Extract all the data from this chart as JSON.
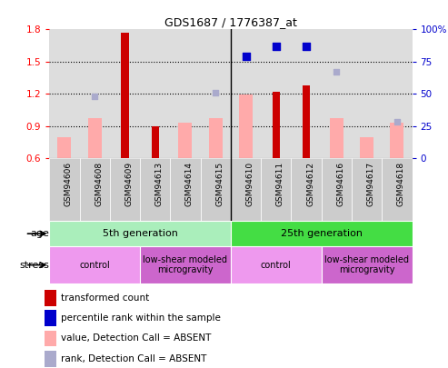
{
  "title": "GDS1687 / 1776387_at",
  "samples": [
    "GSM94606",
    "GSM94608",
    "GSM94609",
    "GSM94613",
    "GSM94614",
    "GSM94615",
    "GSM94610",
    "GSM94611",
    "GSM94612",
    "GSM94616",
    "GSM94617",
    "GSM94618"
  ],
  "transformed_count": [
    null,
    null,
    1.77,
    0.9,
    null,
    null,
    null,
    1.22,
    1.28,
    null,
    null,
    null
  ],
  "transformed_count_absent": [
    0.8,
    0.97,
    null,
    null,
    0.93,
    0.97,
    1.19,
    null,
    null,
    0.97,
    0.8,
    0.93
  ],
  "percentile_rank": [
    null,
    null,
    null,
    null,
    null,
    null,
    79,
    87,
    87,
    null,
    null,
    null
  ],
  "rank_absent_scatter": [
    null,
    48,
    null,
    null,
    null,
    51,
    null,
    null,
    null,
    67,
    null,
    28
  ],
  "ylim_left": [
    0.6,
    1.8
  ],
  "ylim_right": [
    0,
    100
  ],
  "yticks_left": [
    0.6,
    0.9,
    1.2,
    1.5,
    1.8
  ],
  "yticks_right": [
    0,
    25,
    50,
    75,
    100
  ],
  "ytick_labels_right": [
    "0",
    "25",
    "50",
    "75",
    "100%"
  ],
  "bar_color_red": "#cc0000",
  "bar_color_pink": "#ffaaaa",
  "scatter_blue_dark": "#0000cc",
  "scatter_blue_light": "#aaaacc",
  "age_groups": [
    {
      "label": "5th generation",
      "start": 0,
      "end": 6,
      "color": "#aaeebb"
    },
    {
      "label": "25th generation",
      "start": 6,
      "end": 12,
      "color": "#44dd44"
    }
  ],
  "stress_groups": [
    {
      "label": "control",
      "start": 0,
      "end": 3,
      "color": "#ee99ee"
    },
    {
      "label": "low-shear modeled\nmicrogravity",
      "start": 3,
      "end": 6,
      "color": "#cc66cc"
    },
    {
      "label": "control",
      "start": 6,
      "end": 9,
      "color": "#ee99ee"
    },
    {
      "label": "low-shear modeled\nmicrogravity",
      "start": 9,
      "end": 12,
      "color": "#cc66cc"
    }
  ],
  "legend_items": [
    {
      "label": "transformed count",
      "color": "#cc0000"
    },
    {
      "label": "percentile rank within the sample",
      "color": "#0000cc"
    },
    {
      "label": "value, Detection Call = ABSENT",
      "color": "#ffaaaa"
    },
    {
      "label": "rank, Detection Call = ABSENT",
      "color": "#aaaacc"
    }
  ],
  "age_label": "age",
  "stress_label": "stress",
  "plot_bg_color": "#dddddd",
  "xticklabel_bg": "#cccccc",
  "bar_width": 0.45,
  "red_bar_width": 0.25
}
